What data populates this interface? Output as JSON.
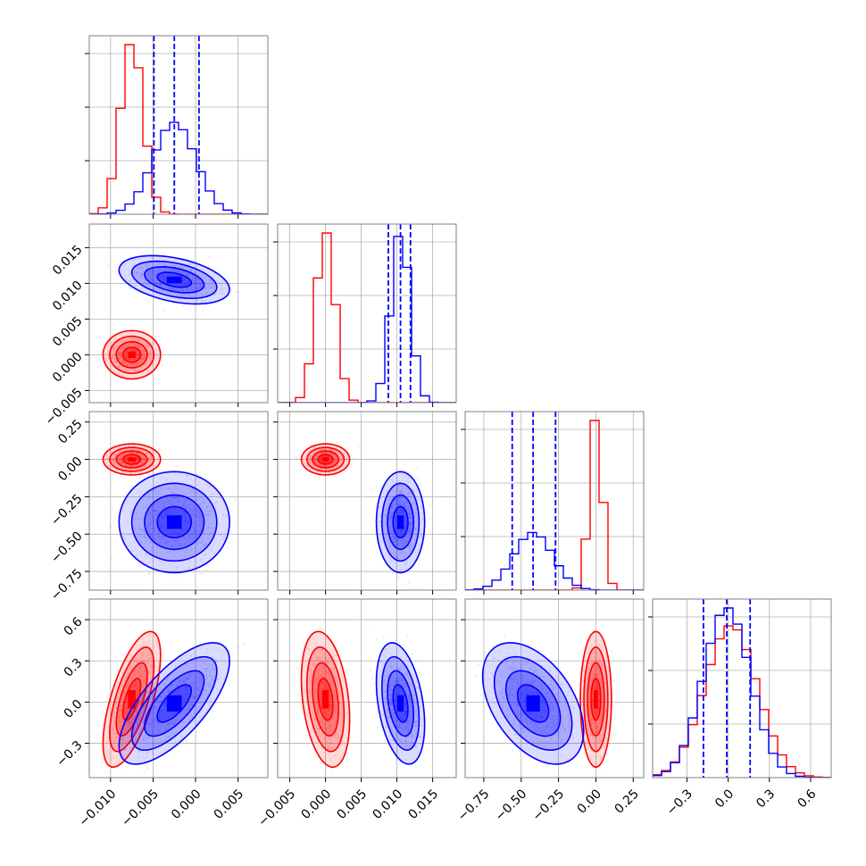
{
  "colors": {
    "red": "#ff0000",
    "blue": "#0000ff",
    "grid": "#b0b0b0",
    "axes": "#808080"
  },
  "chart_data": {
    "type": "corner",
    "grid": true,
    "params": [
      {
        "range": [
          -0.0125,
          0.0085
        ],
        "ticks": [
          -0.01,
          -0.005,
          0.0,
          0.005
        ],
        "tick_labels": [
          "−0.010",
          "−0.005",
          "0.000",
          "0.005"
        ]
      },
      {
        "range": [
          -0.0067,
          0.0183
        ],
        "ticks": [
          -0.005,
          0.0,
          0.005,
          0.01,
          0.015
        ],
        "tick_labels": [
          "−0.005",
          "0.000",
          "0.005",
          "0.010",
          "0.015"
        ]
      },
      {
        "range": [
          -0.875,
          0.32
        ],
        "ticks": [
          -0.75,
          -0.5,
          -0.25,
          0.0,
          0.25
        ],
        "tick_labels": [
          "−0.75",
          "−0.50",
          "−0.25",
          "0.00",
          "0.25"
        ]
      },
      {
        "range": [
          -0.55,
          0.75
        ],
        "ticks": [
          -0.3,
          0.0,
          0.3,
          0.6
        ],
        "tick_labels": [
          "−0.3",
          "0.0",
          "0.3",
          "0.6"
        ]
      }
    ],
    "series": [
      {
        "color": "red",
        "means": [
          -0.0075,
          0.0,
          0.0,
          0.02
        ],
        "sds": [
          0.0013,
          0.0013,
          0.04,
          0.19
        ],
        "corr": {
          "1-0": 0.0,
          "2-0": 0.0,
          "2-1": 0.0,
          "3-0": 0.65,
          "3-1": -0.3,
          "3-2": 0.0
        }
      },
      {
        "color": "blue",
        "means": [
          -0.0025,
          0.0105,
          -0.42,
          -0.01
        ],
        "sds": [
          0.0025,
          0.0013,
          0.13,
          0.17
        ],
        "corr": {
          "1-0": -0.4,
          "2-0": 0.0,
          "2-1": 0.0,
          "3-0": 0.7,
          "3-1": -0.35,
          "3-2": -0.45
        }
      }
    ],
    "quantiles": [
      {
        "param": 0,
        "values": [
          -0.0049,
          -0.0025,
          0.0004
        ]
      },
      {
        "param": 1,
        "values": [
          0.0088,
          0.0105,
          0.0119
        ]
      },
      {
        "param": 2,
        "values": [
          -0.56,
          -0.42,
          -0.27
        ]
      },
      {
        "param": 3,
        "values": [
          -0.18,
          -0.01,
          0.16
        ]
      }
    ]
  }
}
